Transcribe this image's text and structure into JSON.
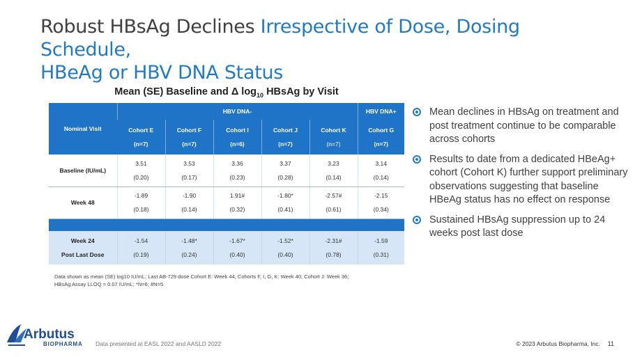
{
  "title": {
    "part1": "Robust HBsAg Declines ",
    "part2": "Irrespective of Dose, Dosing Schedule,",
    "part3": "HBeAg or HBV DNA Status"
  },
  "chart_title": {
    "prefix": "Mean (SE) Baseline and Δ log",
    "sub": "10",
    "suffix": " HBsAg by Visit"
  },
  "table": {
    "nominal_visit_label": "Nominal Visit",
    "group_neg": "HBV DNA-",
    "group_pos": "HBV DNA+",
    "cohorts": [
      {
        "name": "Cohort E",
        "n": "(n=7)"
      },
      {
        "name": "Cohort F",
        "n": "(n=7)"
      },
      {
        "name": "Cohort I",
        "n": "(n=6)"
      },
      {
        "name": "Cohort J",
        "n": "(n=7)"
      },
      {
        "name": "Cohort K",
        "n": "(n=7)"
      },
      {
        "name": "Cohort G",
        "n": "(n=7)"
      }
    ],
    "rows": [
      {
        "label": "Baseline (IU/mL)",
        "values": [
          "3.51",
          "3.53",
          "3.36",
          "3.37",
          "3.23",
          "3.14"
        ],
        "se": [
          "(0.20)",
          "(0.17)",
          "(0.23)",
          "(0.28)",
          "(0.14)",
          "(0.14)"
        ]
      },
      {
        "label": "Week 48",
        "values": [
          "-1.89",
          "-1.90",
          "1.91#",
          "-1.80*",
          "-2.57#",
          "-2.15"
        ],
        "se": [
          "(0.18)",
          "(0.14)",
          "(0.32)",
          "(0.41)",
          "(0.61)",
          "(0.34)"
        ]
      },
      {
        "label_line1": "Week 24",
        "label_line2": "Post Last Dose",
        "values": [
          "-1.54",
          "-1.48*",
          "-1.67*",
          "-1.52*",
          "-2.31#",
          "-1.59"
        ],
        "se": [
          "(0.19)",
          "(0.24)",
          "(0.40)",
          "(0.40)",
          "(0.78)",
          "(0.31)"
        ]
      }
    ]
  },
  "bullets": [
    "Mean declines in HBsAg on treatment and post treatment continue to be comparable across cohorts",
    "Results to date from a dedicated HBeAg+ cohort (Cohort K) further support preliminary observations suggesting that baseline HBeAg status has no effect on response",
    "Sustained HBsAg suppression up to 24 weeks post last dose"
  ],
  "footnote": {
    "line1": "Data shown as mean (SE) log10 IU/mL; Last AB-729 dose Cohort E: Week 44, Cohorts F, I, G, K: Week 40, Cohort J: Week 36;",
    "line2": "HBsAg Assay LLOQ = 0.07 IU/mL; *N=6; #N=5"
  },
  "footer": {
    "logo_text": "Arbutus",
    "logo_sub": "BIOPHARMA",
    "source": "Data presented at EASL 2022 and AASLD 2022",
    "copyright": "© 2023 Arbutus Biopharma, Inc.",
    "page": "11"
  },
  "colors": {
    "accent": "#1f7bc4",
    "table_header": "#1f74c8",
    "table_light_row": "#d7e6f6",
    "brand": "#1f4e96"
  }
}
